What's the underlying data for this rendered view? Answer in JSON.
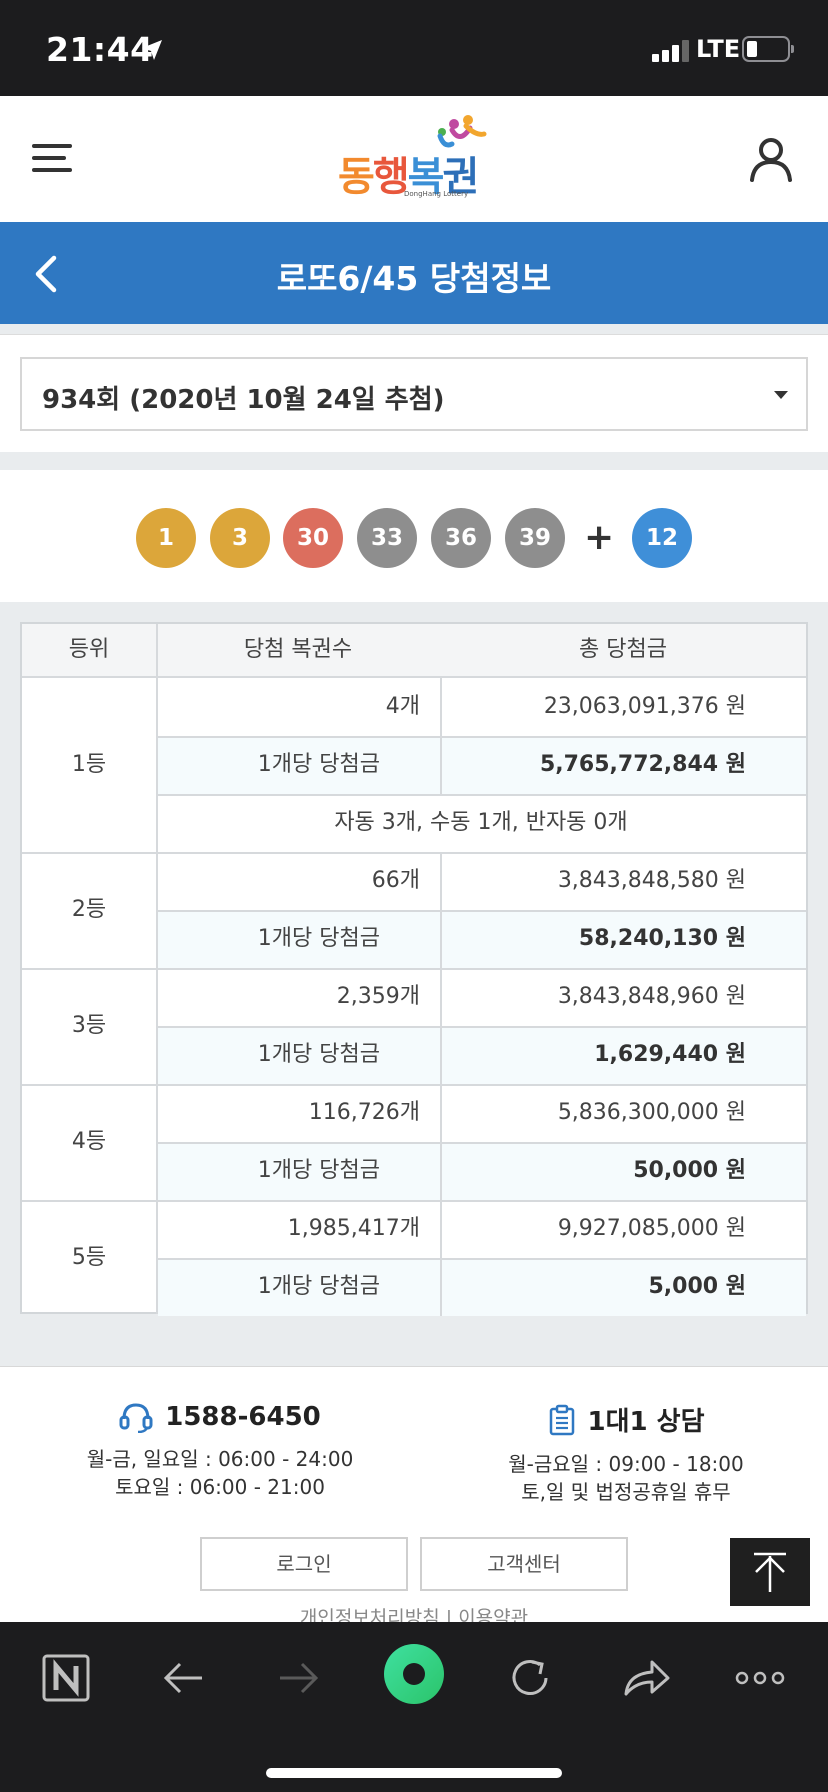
{
  "status_bar": {
    "time": "21:44",
    "network": "LTE"
  },
  "header": {
    "logo_text": "동행복권",
    "logo_sub": "DongHang Lottery"
  },
  "titlebar": {
    "title": "로또6/45 당첨정보"
  },
  "round_select": {
    "value": "934회 (2020년 10월 24일 추첨)"
  },
  "balls": {
    "numbers": [
      "1",
      "3",
      "30",
      "33",
      "36",
      "39"
    ],
    "plus": "+",
    "bonus": "12",
    "colors": [
      "#dca63a",
      "#dca63a",
      "#dc6e5e",
      "#8e8e8e",
      "#8e8e8e",
      "#8e8e8e"
    ],
    "bonus_color": "#3f8fd8"
  },
  "table": {
    "headers": [
      "등위",
      "당첨 복권수",
      "총 당첨금"
    ],
    "per_ticket_label": "1개당 당첨금",
    "rows": [
      {
        "rank": "1등",
        "count": "4개",
        "total": "23,063,091,376 원",
        "per": "5,765,772,844 원",
        "note": "자동 3개, 수동 1개, 반자동 0개"
      },
      {
        "rank": "2등",
        "count": "66개",
        "total": "3,843,848,580 원",
        "per": "58,240,130 원"
      },
      {
        "rank": "3등",
        "count": "2,359개",
        "total": "3,843,848,960 원",
        "per": "1,629,440 원"
      },
      {
        "rank": "4등",
        "count": "116,726개",
        "total": "5,836,300,000 원",
        "per": "50,000 원"
      },
      {
        "rank": "5등",
        "count": "1,985,417개",
        "total": "9,927,085,000 원",
        "per": "5,000 원"
      }
    ]
  },
  "footer": {
    "phone": "1588-6450",
    "phone_hours": [
      "월-금, 일요일 : 06:00 - 24:00",
      "토요일 : 06:00 - 21:00"
    ],
    "consult": "1대1 상담",
    "consult_hours": [
      "월-금요일 : 09:00 - 18:00",
      "토,일 및 법정공휴일 휴무"
    ],
    "login_btn": "로그인",
    "support_btn": "고객센터",
    "policy": "개인정보처리방침  |  이용약관"
  }
}
